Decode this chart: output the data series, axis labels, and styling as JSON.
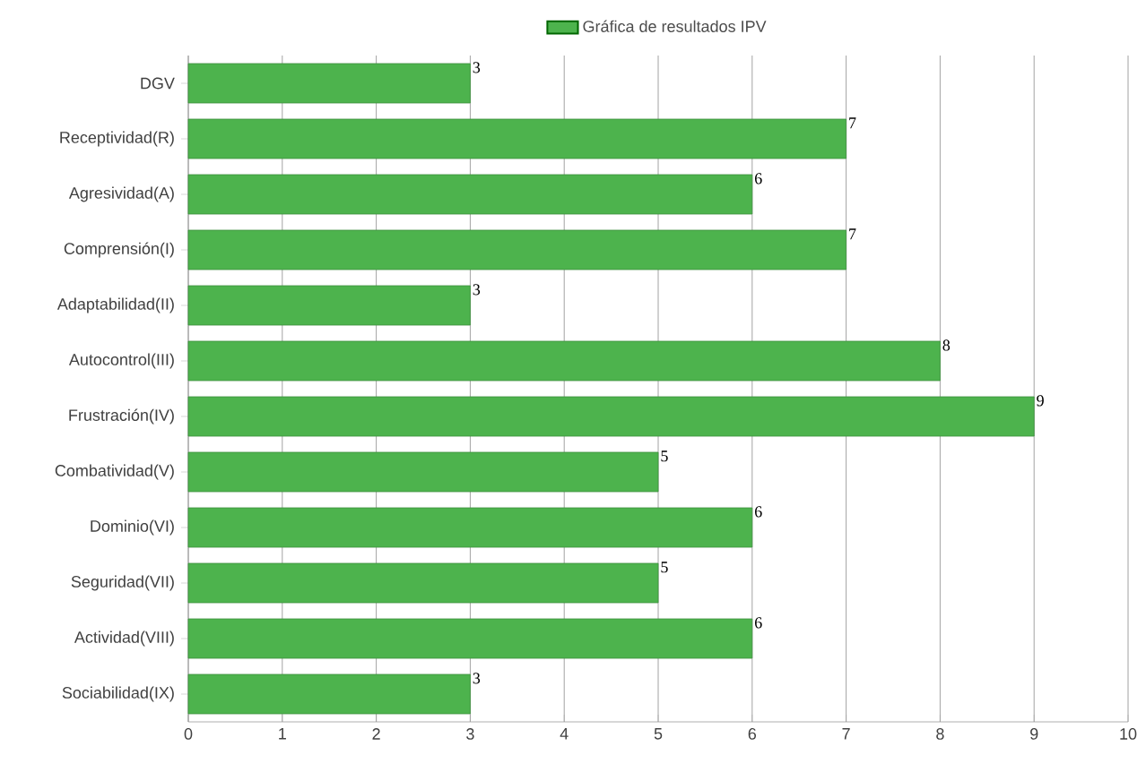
{
  "chart_data": {
    "type": "bar",
    "orientation": "horizontal",
    "categories": [
      "DGV",
      "Receptividad(R)",
      "Agresividad(A)",
      "Comprensión(I)",
      "Adaptabilidad(II)",
      "Autocontrol(III)",
      "Frustración(IV)",
      "Combatividad(V)",
      "Dominio(VI)",
      "Seguridad(VII)",
      "Actividad(VIII)",
      "Sociabilidad(IX)"
    ],
    "series": [
      {
        "name": "Gráfica de resultados IPV",
        "color": "#4db34d",
        "values": [
          3,
          7,
          6,
          7,
          3,
          8,
          9,
          5,
          6,
          5,
          6,
          3
        ]
      }
    ],
    "xlim": [
      0,
      10
    ],
    "xticks": [
      0,
      1,
      2,
      3,
      4,
      5,
      6,
      7,
      8,
      9,
      10
    ],
    "grid": "x",
    "legend": "top",
    "data_labels": true
  }
}
